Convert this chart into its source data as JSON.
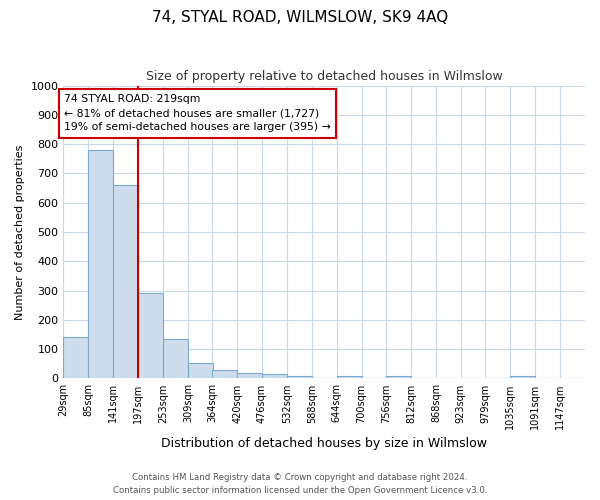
{
  "title": "74, STYAL ROAD, WILMSLOW, SK9 4AQ",
  "subtitle": "Size of property relative to detached houses in Wilmslow",
  "xlabel": "Distribution of detached houses by size in Wilmslow",
  "ylabel": "Number of detached properties",
  "bar_color": "#cfdcec",
  "bar_edge_color": "#7aaad0",
  "grid_color": "#c8d8e8",
  "bg_color": "#ffffff",
  "fig_bg_color": "#ffffff",
  "vline_x_index": 3,
  "vline_color": "#cc0000",
  "annotation_text": "74 STYAL ROAD: 219sqm\n← 81% of detached houses are smaller (1,727)\n19% of semi-detached houses are larger (395) →",
  "annotation_box_color": "#ffffff",
  "annotation_border_color": "#cc0000",
  "bins": [
    29,
    85,
    141,
    197,
    253,
    309,
    364,
    420,
    476,
    532,
    588,
    644,
    700,
    756,
    812,
    868,
    923,
    979,
    1035,
    1091,
    1147
  ],
  "bar_heights": [
    140,
    780,
    660,
    290,
    135,
    52,
    30,
    18,
    14,
    8,
    0,
    10,
    0,
    10,
    0,
    0,
    0,
    0,
    10,
    0,
    0
  ],
  "ylim": [
    0,
    1000
  ],
  "yticks": [
    0,
    100,
    200,
    300,
    400,
    500,
    600,
    700,
    800,
    900,
    1000
  ],
  "footer_text": "Contains HM Land Registry data © Crown copyright and database right 2024.\nContains public sector information licensed under the Open Government Licence v3.0.",
  "fig_width": 6.0,
  "fig_height": 5.0,
  "dpi": 100
}
